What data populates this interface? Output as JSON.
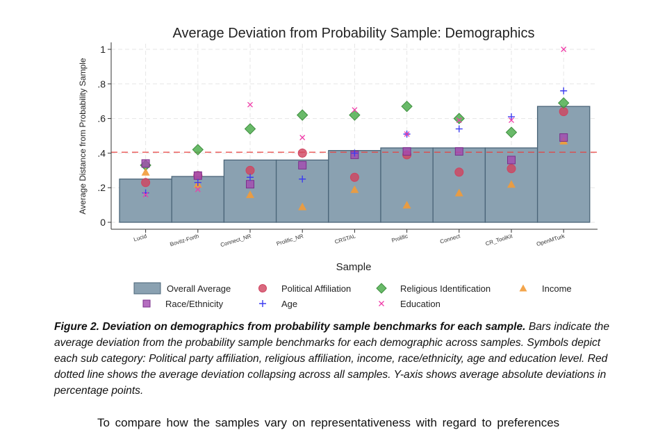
{
  "chart_data": {
    "type": "bar",
    "title": "Average Deviation from Probability Sample: Demographics",
    "xlabel": "Sample",
    "ylabel": "Average Distance from Probability Sample",
    "ylim": [
      0,
      1
    ],
    "yticks": [
      0,
      0.2,
      0.4,
      0.6,
      0.8,
      1
    ],
    "ytick_labels": [
      "0",
      ".2",
      ".4",
      ".6",
      ".8",
      "1"
    ],
    "grid": true,
    "legend_position": "bottom",
    "reference_line": {
      "value": 0.405,
      "color": "#e8413f",
      "style": "dashed"
    },
    "categories": [
      "Lucid",
      "Bovitz-Forth",
      "Connect_NR",
      "Prolific_NR",
      "CRSTAL",
      "Prolific",
      "Connect",
      "CR_ToolKit",
      "OpenMTurk"
    ],
    "bars": {
      "name": "Overall Average",
      "color": "#8aa1b1",
      "values": [
        0.25,
        0.265,
        0.36,
        0.36,
        0.415,
        0.43,
        0.43,
        0.43,
        0.67
      ]
    },
    "series": [
      {
        "name": "Political Affiliation",
        "marker": "circle",
        "color": "#d0435f",
        "values": [
          0.23,
          0.27,
          0.3,
          0.4,
          0.26,
          0.39,
          0.29,
          0.31,
          0.64
        ]
      },
      {
        "name": "Religious Identification",
        "marker": "diamond",
        "color": "#4fae4f",
        "values": [
          0.33,
          0.42,
          0.54,
          0.62,
          0.62,
          0.67,
          0.6,
          0.52,
          0.69
        ]
      },
      {
        "name": "Income",
        "marker": "triangle",
        "color": "#f29b38",
        "values": [
          0.29,
          0.22,
          0.16,
          0.09,
          0.19,
          0.1,
          0.17,
          0.22,
          0.47
        ]
      },
      {
        "name": "Race/Ethnicity",
        "marker": "square",
        "color": "#a34ab0",
        "values": [
          0.34,
          0.27,
          0.22,
          0.33,
          0.39,
          0.41,
          0.41,
          0.36,
          0.49
        ]
      },
      {
        "name": "Age",
        "marker": "plus",
        "color": "#3c3cf0",
        "values": [
          0.17,
          0.23,
          0.26,
          0.25,
          0.4,
          0.51,
          0.54,
          0.61,
          0.76
        ]
      },
      {
        "name": "Education",
        "marker": "x",
        "color": "#f03ca8",
        "values": [
          0.16,
          0.19,
          0.68,
          0.49,
          0.65,
          0.51,
          0.59,
          0.59,
          1.0
        ]
      }
    ]
  },
  "caption": {
    "label": "Figure 2. Deviation on demographics from probability sample benchmarks for each sample.",
    "text": " Bars indicate the average deviation from the probability sample benchmarks for each demographic across samples. Symbols depict each sub category: Political party affiliation, religious affiliation, income, race/ethnicity, age and education level. Red dotted line shows the average deviation collapsing across all samples. Y-axis shows average absolute deviations in percentage points."
  },
  "body_text": "To compare how the samples vary on representativeness with regard to preferences"
}
